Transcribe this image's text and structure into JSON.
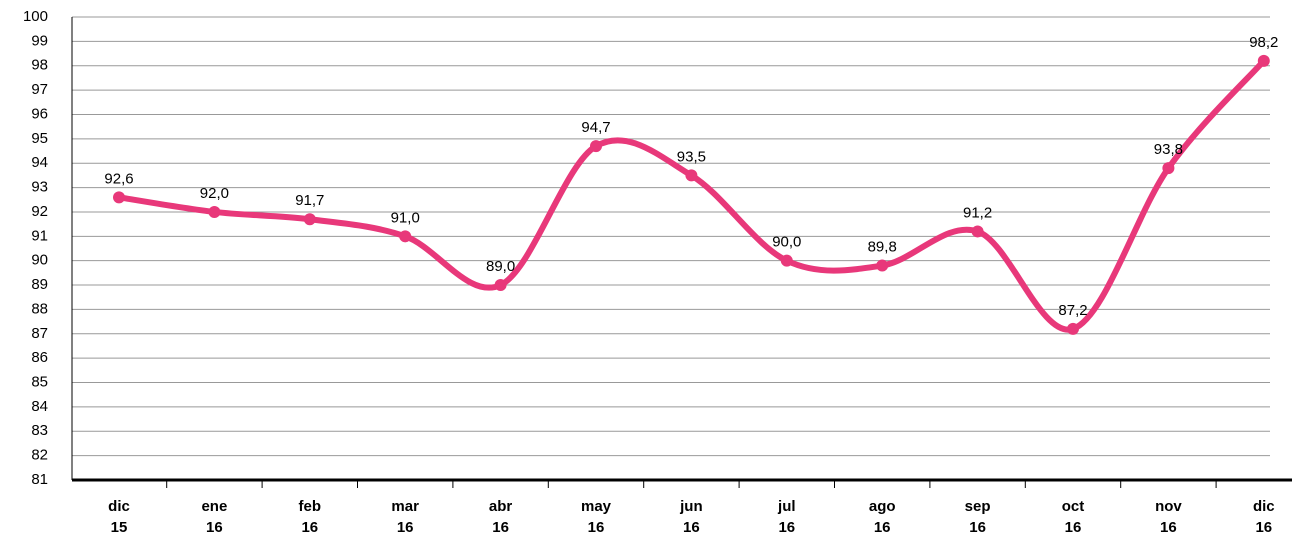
{
  "chart_data": {
    "type": "line",
    "categories": [
      [
        "dic",
        "15"
      ],
      [
        "ene",
        "16"
      ],
      [
        "feb",
        "16"
      ],
      [
        "mar",
        "16"
      ],
      [
        "abr",
        "16"
      ],
      [
        "may",
        "16"
      ],
      [
        "jun",
        "16"
      ],
      [
        "jul",
        "16"
      ],
      [
        "ago",
        "16"
      ],
      [
        "sep",
        "16"
      ],
      [
        "oct",
        "16"
      ],
      [
        "nov",
        "16"
      ],
      [
        "dic",
        "16"
      ]
    ],
    "values": [
      92.6,
      92.0,
      91.7,
      91.0,
      89.0,
      94.7,
      93.5,
      90.0,
      89.8,
      91.2,
      87.2,
      93.8,
      98.2
    ],
    "value_labels": [
      "92,6",
      "92,0",
      "91,7",
      "91,0",
      "89,0",
      "94,7",
      "93,5",
      "90,0",
      "89,8",
      "91,2",
      "87,2",
      "93,8",
      "98,2"
    ],
    "color": "#e8387a",
    "ylim": [
      81,
      100
    ],
    "yticks": [
      81,
      82,
      83,
      84,
      85,
      86,
      87,
      88,
      89,
      90,
      91,
      92,
      93,
      94,
      95,
      96,
      97,
      98,
      99,
      100
    ],
    "grid": true
  }
}
